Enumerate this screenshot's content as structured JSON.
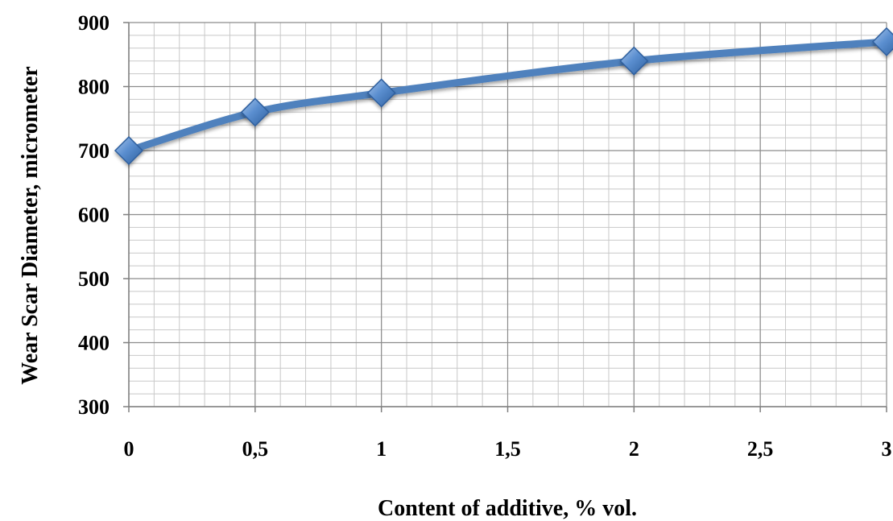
{
  "chart_data": {
    "type": "line",
    "xlabel": "Content of additive, % vol.",
    "ylabel": "Wear Scar Diameter, micrometer",
    "x": [
      0,
      0.5,
      1,
      2,
      3
    ],
    "series": [
      {
        "values": [
          700,
          760,
          790,
          840,
          870
        ]
      }
    ],
    "xlim": [
      0,
      3
    ],
    "ylim": [
      300,
      900
    ],
    "x_ticks": [
      "0",
      "0,5",
      "1",
      "1,5",
      "2",
      "2,5",
      "3"
    ],
    "y_ticks": [
      "300",
      "400",
      "500",
      "600",
      "700",
      "800",
      "900"
    ],
    "x_tick_values": [
      0,
      0.5,
      1,
      1.5,
      2,
      2.5,
      3
    ],
    "y_tick_values": [
      300,
      400,
      500,
      600,
      700,
      800,
      900
    ],
    "grid": true,
    "legend": "none",
    "line_color": "#4F81BD",
    "marker_color": "#4F81BD",
    "marker": "diamond"
  }
}
